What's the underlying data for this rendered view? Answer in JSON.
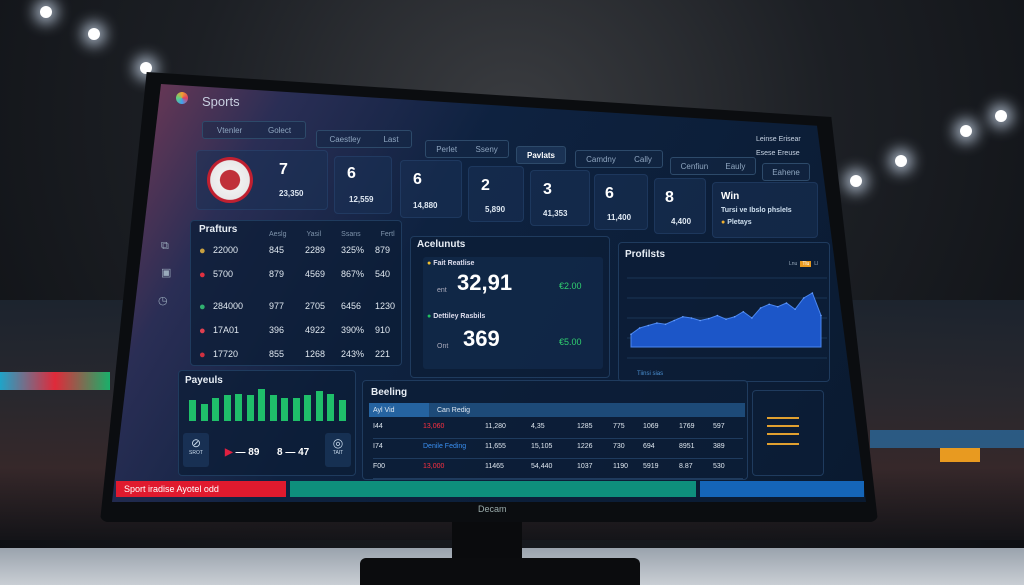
{
  "app": {
    "title": "Sports",
    "bezel_label": "Decam"
  },
  "tabs": [
    [
      "Vtenler",
      "Golect"
    ],
    [
      "Caestley",
      "Last"
    ],
    [
      "Perlet",
      "Sseny"
    ],
    [
      "Pavlats"
    ],
    [
      "Camdny",
      "Cally"
    ],
    [
      "Cenfiun",
      "Eauly"
    ],
    [
      "Eahene"
    ]
  ],
  "corner_menu": [
    [
      "Leinse",
      "Erisear"
    ],
    [
      "Esese",
      "Ereuse"
    ]
  ],
  "score_cards": [
    {
      "big": "7",
      "small": "23,350"
    },
    {
      "big": "6",
      "small": "12,559"
    },
    {
      "big": "6",
      "small": "14,880"
    },
    {
      "big": "2",
      "small": "5,890"
    },
    {
      "big": "3",
      "small": "41,353"
    },
    {
      "big": "6",
      "small": "11,400"
    },
    {
      "big": "8",
      "small": "4,400"
    }
  ],
  "win_card": {
    "title": "Win",
    "line": "Tursi ve Ibslo phsleIs",
    "tag": "Pletays"
  },
  "fixtures": {
    "title": "Prafturs",
    "columns": [
      "Aeslg",
      "Yasil",
      "Ssans",
      "Fertl"
    ],
    "rows": [
      [
        "22000",
        "845",
        "2289",
        "325%",
        "879"
      ],
      [
        "5700",
        "879",
        "4569",
        "867%",
        "540"
      ],
      [
        "284000",
        "977",
        "2705",
        "6456",
        "1230"
      ],
      [
        "17A01",
        "396",
        "4922",
        "390%",
        "910"
      ],
      [
        "17720",
        "855",
        "1268",
        "243%",
        "221"
      ]
    ]
  },
  "accounts": {
    "title": "Acelunuts",
    "items": [
      {
        "label": "Fait Reatlise",
        "prefix": "ent",
        "value": "32,91",
        "delta": "€2.00",
        "indicator_color": "#f0c030"
      },
      {
        "label": "Dettiley Rasbils",
        "prefix": "Ont",
        "value": "369",
        "delta": "€5.00",
        "indicator_color": "#20c060"
      }
    ]
  },
  "profits": {
    "title": "Profilsts",
    "legend": [
      "Lnu",
      "Tlu",
      "Ll"
    ],
    "footer": "Tiinsi sias",
    "chart_data": {
      "type": "area",
      "title": "Profilsts",
      "values": [
        30,
        40,
        44,
        48,
        46,
        52,
        58,
        56,
        52,
        55,
        60,
        54,
        58,
        66,
        56,
        72,
        78,
        74,
        80,
        70,
        88,
        96,
        60
      ]
    }
  },
  "payouts": {
    "title": "Payeuls",
    "chart_data": {
      "type": "bar",
      "values": [
        55,
        45,
        62,
        68,
        72,
        68,
        85,
        70,
        62,
        62,
        68,
        80,
        72,
        55
      ]
    },
    "left_badge": "SROT",
    "right_badge": "TAIT",
    "score_a": "89",
    "score_b": "8 — 47"
  },
  "bookings": {
    "title": "Beeling",
    "columns": [
      "Ayl Vid",
      "Can Redig"
    ],
    "rows": [
      [
        "I44",
        "13,060",
        "11,280",
        "4,35",
        "1285",
        "775",
        "1069",
        "1769",
        "597"
      ],
      [
        "I74",
        "Denile Feding",
        "11,655",
        "15,105",
        "1226",
        "730",
        "694",
        "8951",
        "389"
      ],
      [
        "F00",
        "13,000",
        "11465",
        "54,440",
        "1037",
        "1190",
        "5919",
        "8.87",
        "530"
      ]
    ]
  },
  "footer": {
    "ticker": "Sport iradise Ayotel odd",
    "colors": [
      "#e01a2e",
      "#0e8f7c",
      "#1565b8"
    ]
  }
}
